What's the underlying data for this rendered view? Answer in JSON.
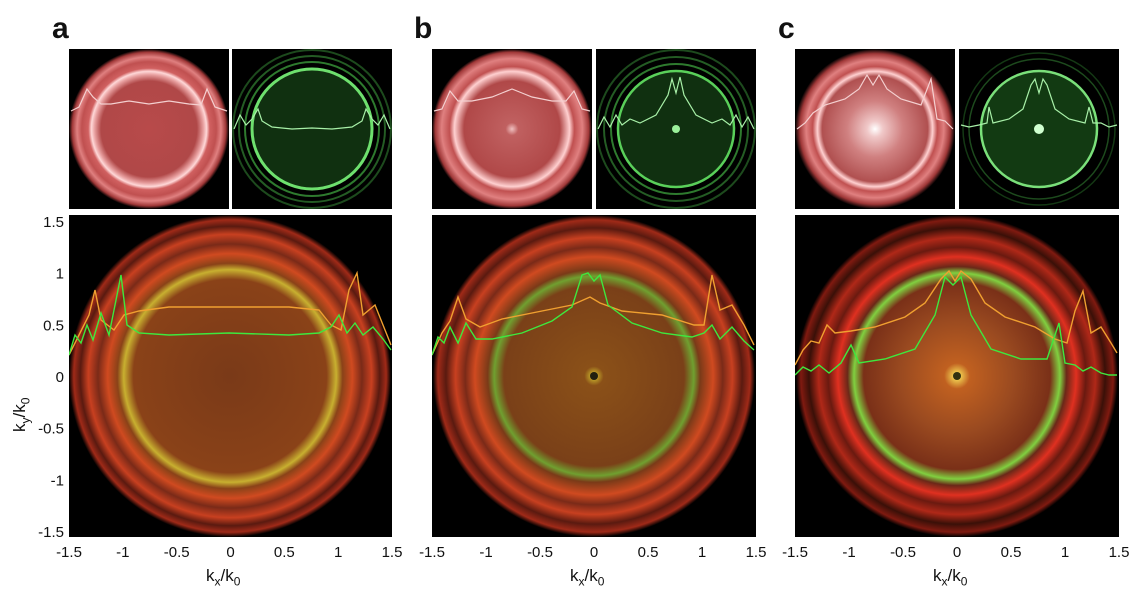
{
  "figure": {
    "panels": [
      {
        "letter": "a",
        "xlabel_main": "k",
        "xlabel_sub": "x",
        "xlabel_rest": "/k",
        "xlabel_sub2": "0"
      },
      {
        "letter": "b",
        "xlabel_main": "k",
        "xlabel_sub": "x",
        "xlabel_rest": "/k",
        "xlabel_sub2": "0"
      },
      {
        "letter": "c",
        "xlabel_main": "k",
        "xlabel_sub": "x",
        "xlabel_rest": "/k",
        "xlabel_sub2": "0"
      }
    ],
    "ylabel": {
      "main": "k",
      "sub": "y",
      "rest": "/k",
      "sub2": "0"
    },
    "y_ticks": [
      "1.5",
      "1",
      "0.5",
      "0",
      "-0.5",
      "-1",
      "-1.5"
    ],
    "x_ticks": [
      "-1.5",
      "-1",
      "-0.5",
      "0",
      "0.5",
      "1",
      "1.5"
    ],
    "colors": {
      "red_channel": "#e0503c",
      "green_channel": "#5fdc5a",
      "orange_trace": "#f0a030",
      "green_trace": "#3ee83e",
      "background": "#000000"
    }
  }
}
